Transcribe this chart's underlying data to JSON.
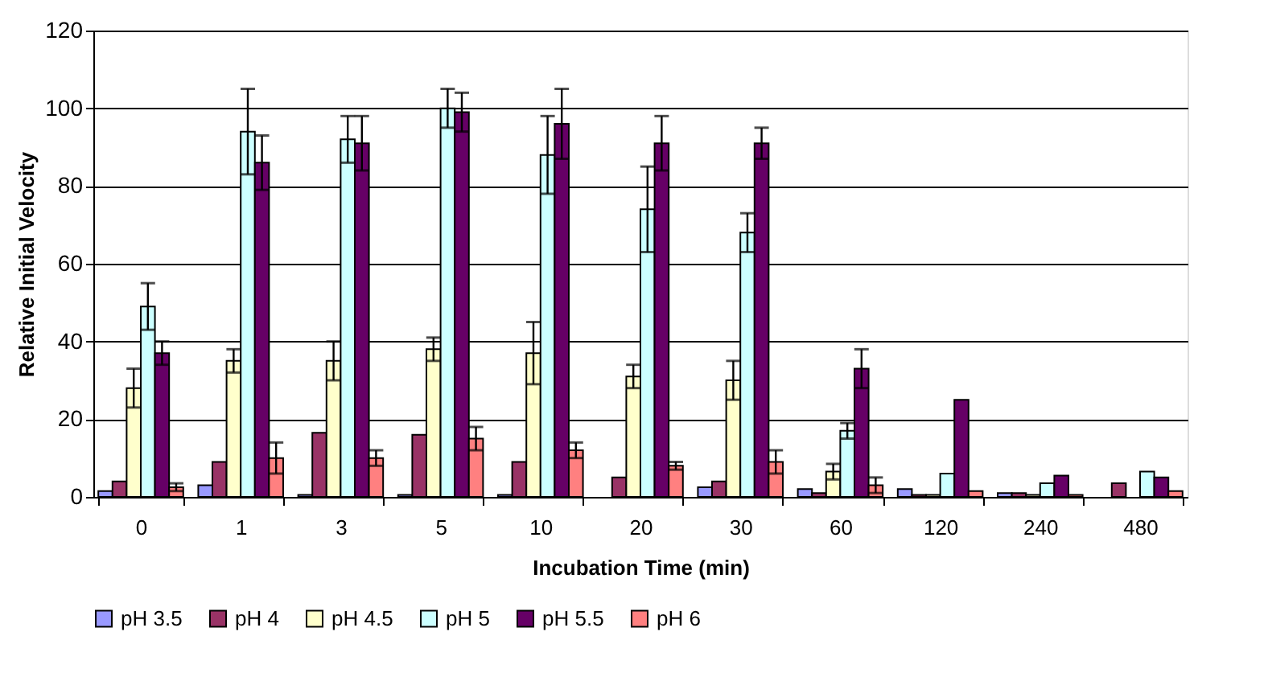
{
  "chart_data": {
    "type": "bar",
    "xlabel": "Incubation Time (min)",
    "ylabel": "Relative Initial Velocity",
    "categories": [
      "0",
      "1",
      "3",
      "5",
      "10",
      "20",
      "30",
      "60",
      "120",
      "240",
      "480"
    ],
    "ylim": [
      0,
      120
    ],
    "yticks": [
      0,
      20,
      40,
      60,
      80,
      100,
      120
    ],
    "grid": "y",
    "legend": "bottom",
    "series": [
      {
        "name": "pH 3.5",
        "color": "#9999ff",
        "values": [
          1.5,
          3,
          0.5,
          0.5,
          0.5,
          null,
          2.5,
          2,
          2,
          1,
          null
        ]
      },
      {
        "name": "pH 4",
        "color": "#993366",
        "values": [
          4,
          9,
          16.5,
          16,
          9,
          5,
          4,
          1,
          0.5,
          1,
          3.5
        ]
      },
      {
        "name": "pH 4.5",
        "color": "#ffffcc",
        "values": [
          28,
          35,
          35,
          38,
          37,
          31,
          30,
          6.5,
          0.5,
          0.5,
          null
        ],
        "errors": [
          5,
          3,
          5,
          3,
          8,
          3,
          5,
          2,
          null,
          null,
          null
        ]
      },
      {
        "name": "pH 5",
        "color": "#ccffff",
        "values": [
          49,
          94,
          92,
          100,
          88,
          74,
          68,
          17,
          6,
          3.5,
          6.5
        ],
        "errors": [
          6,
          11,
          6,
          5,
          10,
          11,
          5,
          2,
          null,
          null,
          null
        ]
      },
      {
        "name": "pH 5.5",
        "color": "#660066",
        "values": [
          37,
          86,
          91,
          99,
          96,
          91,
          91,
          33,
          25,
          5.5,
          5
        ],
        "errors": [
          3,
          7,
          7,
          5,
          9,
          7,
          4,
          5,
          null,
          null,
          null
        ]
      },
      {
        "name": "pH 6",
        "color": "#ff8080",
        "values": [
          2.5,
          10,
          10,
          15,
          12,
          8,
          9,
          3,
          1.5,
          0.5,
          1.5
        ],
        "errors": [
          1,
          4,
          2,
          3,
          2,
          1,
          3,
          2,
          null,
          null,
          null
        ]
      }
    ]
  }
}
